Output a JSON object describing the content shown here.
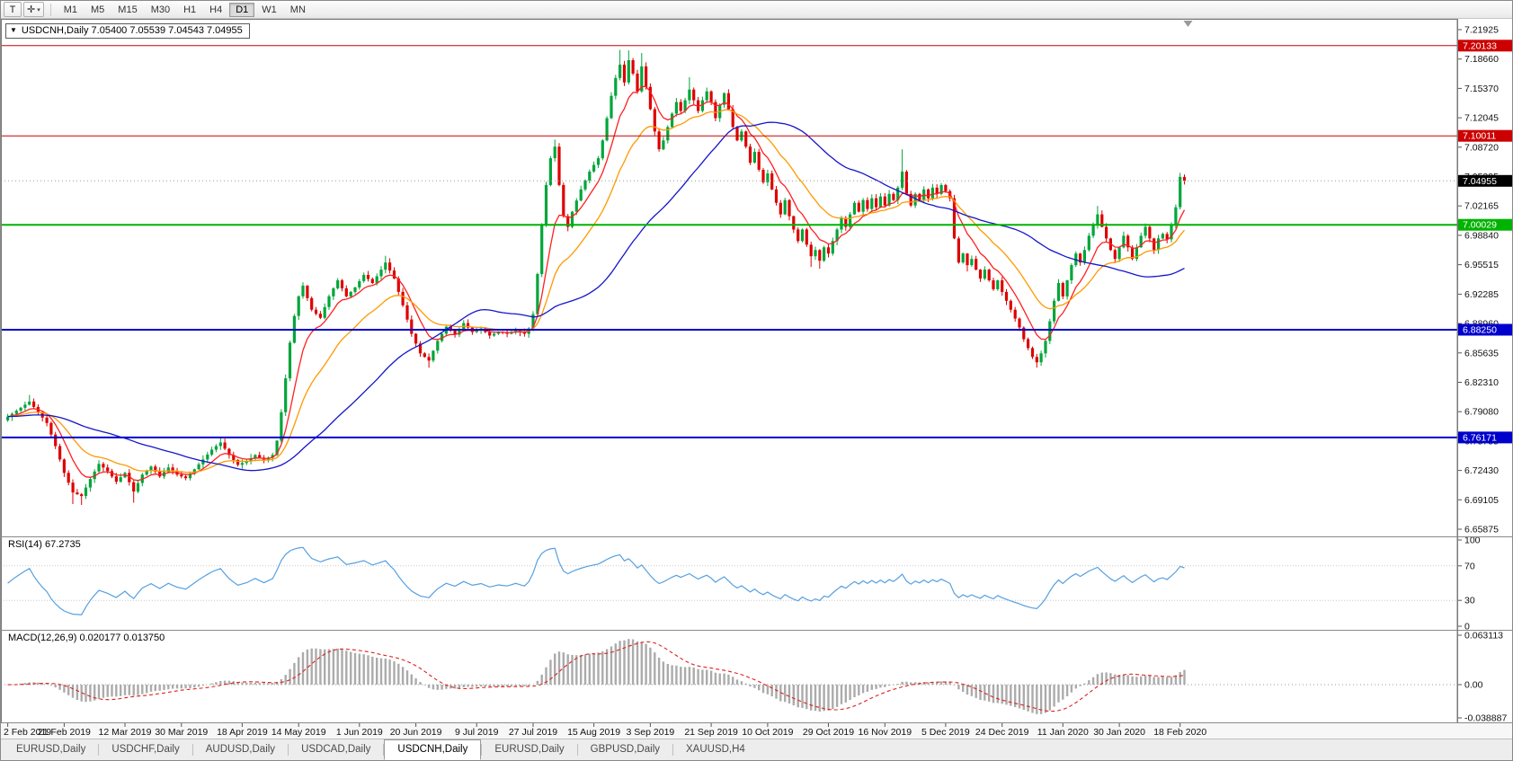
{
  "toolbar": {
    "text_tool_glyph": "T",
    "crosshair_glyph": "✛",
    "caret_glyph": "▾",
    "timeframes": [
      "M1",
      "M5",
      "M15",
      "M30",
      "H1",
      "H4",
      "D1",
      "W1",
      "MN"
    ],
    "active_timeframe": "D1"
  },
  "chart": {
    "title": "USDCNH,Daily 7.05400 7.05539 7.04543 7.04955",
    "ohlc_caret": "▼",
    "symbol": "USDCNH",
    "period": "Daily",
    "open": "7.05400",
    "high": "7.05539",
    "low": "7.04543",
    "close": "7.04955"
  },
  "indicators": {
    "rsi": {
      "label": "RSI(14) 67.2735",
      "period": 14,
      "value": 67.2735,
      "axis_labels": [
        "100",
        "70",
        "30",
        "0"
      ],
      "levels": [
        70,
        30
      ],
      "line_color": "#55a0e0"
    },
    "macd": {
      "label": "MACD(12,26,9) 0.020177 0.013750",
      "values": [
        0.020177,
        0.01375
      ],
      "axis_labels": [
        "0.063113",
        "0.00",
        "-0.038887"
      ],
      "histogram_color": "#ababab",
      "signal_color": "#e02020"
    }
  },
  "chart_data": {
    "type": "candlestick",
    "symbol": "USDCNH",
    "timeframe": "Daily",
    "n_candles": 272,
    "bull_color": "#00a53a",
    "bear_color": "#dd0000",
    "price_axis": {
      "min": 6.65875,
      "max": 7.21925,
      "labels": [
        "7.21925",
        "7.18660",
        "7.15370",
        "7.12045",
        "7.08720",
        "7.05395",
        "7.02165",
        "6.98840",
        "6.95515",
        "6.92285",
        "6.88960",
        "6.85635",
        "6.82310",
        "6.79080",
        "6.75755",
        "6.72430",
        "6.69105",
        "6.65875"
      ]
    },
    "hlines": [
      {
        "value": 7.20133,
        "label": "7.20133",
        "color": "#cc0000",
        "width": 1
      },
      {
        "value": 7.10011,
        "label": "7.10011",
        "color": "#cc0000",
        "width": 1
      },
      {
        "value": 7.00029,
        "label": "7.00029",
        "color": "#00b300",
        "width": 2
      },
      {
        "value": 6.8825,
        "label": "6.88250",
        "color": "#0000cc",
        "width": 2
      },
      {
        "value": 6.76171,
        "label": "6.76171",
        "color": "#0000cc",
        "width": 2
      }
    ],
    "current_price": {
      "value": 7.04955,
      "label": "7.04955",
      "badge_color": "#000000"
    },
    "moving_averages": [
      {
        "name": "fast-ma",
        "type": "ema",
        "period": 8,
        "color": "#ff2020"
      },
      {
        "name": "mid-ma",
        "type": "ema",
        "period": 20,
        "color": "#ff9900"
      },
      {
        "name": "slow-ma",
        "type": "sma",
        "period": 45,
        "color": "#1515cc"
      }
    ],
    "date_axis": {
      "labels": [
        "2 Feb 2019",
        "21 Feb 2019",
        "12 Mar 2019",
        "30 Mar 2019",
        "18 Apr 2019",
        "14 May 2019",
        "1 Jun 2019",
        "20 Jun 2019",
        "9 Jul 2019",
        "27 Jul 2019",
        "15 Aug 2019",
        "3 Sep 2019",
        "21 Sep 2019",
        "10 Oct 2019",
        "29 Oct 2019",
        "16 Nov 2019",
        "5 Dec 2019",
        "24 Dec 2019",
        "11 Jan 2020",
        "30 Jan 2020",
        "18 Feb 2020"
      ],
      "indices": [
        0,
        13,
        27,
        40,
        54,
        67,
        81,
        94,
        108,
        121,
        135,
        148,
        162,
        175,
        189,
        202,
        216,
        229,
        243,
        256,
        270
      ]
    },
    "close_anchors": [
      [
        0,
        6.785
      ],
      [
        3,
        6.795
      ],
      [
        5,
        6.802
      ],
      [
        7,
        6.79
      ],
      [
        9,
        6.778
      ],
      [
        11,
        6.752
      ],
      [
        13,
        6.722
      ],
      [
        15,
        6.7
      ],
      [
        17,
        6.696
      ],
      [
        19,
        6.715
      ],
      [
        21,
        6.732
      ],
      [
        23,
        6.724
      ],
      [
        25,
        6.712
      ],
      [
        27,
        6.722
      ],
      [
        29,
        6.701
      ],
      [
        31,
        6.72
      ],
      [
        33,
        6.729
      ],
      [
        35,
        6.718
      ],
      [
        37,
        6.728
      ],
      [
        39,
        6.72
      ],
      [
        41,
        6.716
      ],
      [
        43,
        6.726
      ],
      [
        45,
        6.737
      ],
      [
        47,
        6.748
      ],
      [
        49,
        6.756
      ],
      [
        51,
        6.742
      ],
      [
        53,
        6.731
      ],
      [
        55,
        6.735
      ],
      [
        57,
        6.742
      ],
      [
        59,
        6.736
      ],
      [
        61,
        6.742
      ],
      [
        62,
        6.758
      ],
      [
        63,
        6.79
      ],
      [
        64,
        6.828
      ],
      [
        65,
        6.868
      ],
      [
        66,
        6.898
      ],
      [
        67,
        6.92
      ],
      [
        68,
        6.932
      ],
      [
        69,
        6.918
      ],
      [
        70,
        6.905
      ],
      [
        72,
        6.896
      ],
      [
        74,
        6.92
      ],
      [
        76,
        6.938
      ],
      [
        78,
        6.92
      ],
      [
        80,
        6.93
      ],
      [
        82,
        6.944
      ],
      [
        84,
        6.935
      ],
      [
        86,
        6.95
      ],
      [
        87,
        6.958
      ],
      [
        89,
        6.94
      ],
      [
        91,
        6.91
      ],
      [
        93,
        6.878
      ],
      [
        95,
        6.856
      ],
      [
        97,
        6.848
      ],
      [
        99,
        6.87
      ],
      [
        101,
        6.886
      ],
      [
        103,
        6.877
      ],
      [
        105,
        6.89
      ],
      [
        107,
        6.88
      ],
      [
        109,
        6.884
      ],
      [
        111,
        6.876
      ],
      [
        113,
        6.88
      ],
      [
        115,
        6.878
      ],
      [
        117,
        6.882
      ],
      [
        119,
        6.878
      ],
      [
        120,
        6.884
      ],
      [
        121,
        6.9
      ],
      [
        122,
        6.945
      ],
      [
        123,
        7.0
      ],
      [
        124,
        7.045
      ],
      [
        125,
        7.075
      ],
      [
        126,
        7.088
      ],
      [
        127,
        7.045
      ],
      [
        128,
        7.01
      ],
      [
        129,
        6.998
      ],
      [
        130,
        7.015
      ],
      [
        132,
        7.04
      ],
      [
        134,
        7.06
      ],
      [
        136,
        7.075
      ],
      [
        137,
        7.095
      ],
      [
        138,
        7.12
      ],
      [
        139,
        7.145
      ],
      [
        140,
        7.165
      ],
      [
        141,
        7.18
      ],
      [
        142,
        7.16
      ],
      [
        143,
        7.185
      ],
      [
        144,
        7.17
      ],
      [
        145,
        7.15
      ],
      [
        146,
        7.178
      ],
      [
        147,
        7.155
      ],
      [
        148,
        7.13
      ],
      [
        149,
        7.105
      ],
      [
        150,
        7.085
      ],
      [
        151,
        7.095
      ],
      [
        152,
        7.11
      ],
      [
        153,
        7.125
      ],
      [
        154,
        7.138
      ],
      [
        155,
        7.128
      ],
      [
        156,
        7.14
      ],
      [
        157,
        7.152
      ],
      [
        158,
        7.14
      ],
      [
        159,
        7.128
      ],
      [
        160,
        7.14
      ],
      [
        161,
        7.15
      ],
      [
        162,
        7.138
      ],
      [
        163,
        7.12
      ],
      [
        164,
        7.135
      ],
      [
        165,
        7.148
      ],
      [
        166,
        7.13
      ],
      [
        167,
        7.11
      ],
      [
        168,
        7.095
      ],
      [
        169,
        7.105
      ],
      [
        170,
        7.088
      ],
      [
        171,
        7.07
      ],
      [
        172,
        7.082
      ],
      [
        173,
        7.062
      ],
      [
        174,
        7.048
      ],
      [
        175,
        7.058
      ],
      [
        176,
        7.04
      ],
      [
        177,
        7.025
      ],
      [
        178,
        7.012
      ],
      [
        179,
        7.028
      ],
      [
        180,
        7.01
      ],
      [
        181,
        6.995
      ],
      [
        182,
        6.982
      ],
      [
        183,
        6.995
      ],
      [
        184,
        6.978
      ],
      [
        185,
        6.965
      ],
      [
        186,
        6.972
      ],
      [
        187,
        6.96
      ],
      [
        188,
        6.975
      ],
      [
        189,
        6.968
      ],
      [
        190,
        6.982
      ],
      [
        191,
        6.995
      ],
      [
        192,
        7.008
      ],
      [
        193,
        6.998
      ],
      [
        194,
        7.012
      ],
      [
        195,
        7.025
      ],
      [
        196,
        7.015
      ],
      [
        197,
        7.028
      ],
      [
        198,
        7.018
      ],
      [
        199,
        7.03
      ],
      [
        200,
        7.02
      ],
      [
        201,
        7.032
      ],
      [
        202,
        7.022
      ],
      [
        203,
        7.035
      ],
      [
        204,
        7.028
      ],
      [
        205,
        7.042
      ],
      [
        206,
        7.06
      ],
      [
        207,
        7.035
      ],
      [
        208,
        7.022
      ],
      [
        209,
        7.035
      ],
      [
        210,
        7.028
      ],
      [
        211,
        7.04
      ],
      [
        212,
        7.03
      ],
      [
        213,
        7.042
      ],
      [
        214,
        7.035
      ],
      [
        215,
        7.045
      ],
      [
        216,
        7.038
      ],
      [
        217,
        7.03
      ],
      [
        218,
        6.985
      ],
      [
        219,
        6.958
      ],
      [
        220,
        6.968
      ],
      [
        221,
        6.955
      ],
      [
        222,
        6.962
      ],
      [
        223,
        6.95
      ],
      [
        224,
        6.94
      ],
      [
        225,
        6.95
      ],
      [
        226,
        6.938
      ],
      [
        227,
        6.928
      ],
      [
        228,
        6.938
      ],
      [
        229,
        6.925
      ],
      [
        230,
        6.915
      ],
      [
        231,
        6.905
      ],
      [
        232,
        6.895
      ],
      [
        233,
        6.885
      ],
      [
        234,
        6.872
      ],
      [
        235,
        6.862
      ],
      [
        236,
        6.852
      ],
      [
        237,
        6.846
      ],
      [
        238,
        6.856
      ],
      [
        239,
        6.87
      ],
      [
        240,
        6.892
      ],
      [
        241,
        6.915
      ],
      [
        242,
        6.935
      ],
      [
        243,
        6.92
      ],
      [
        244,
        6.938
      ],
      [
        245,
        6.955
      ],
      [
        246,
        6.968
      ],
      [
        247,
        6.958
      ],
      [
        248,
        6.972
      ],
      [
        249,
        6.988
      ],
      [
        250,
        7.0
      ],
      [
        251,
        7.012
      ],
      [
        252,
        6.998
      ],
      [
        253,
        6.985
      ],
      [
        254,
        6.972
      ],
      [
        255,
        6.962
      ],
      [
        256,
        6.975
      ],
      [
        257,
        6.988
      ],
      [
        258,
        6.975
      ],
      [
        259,
        6.962
      ],
      [
        260,
        6.975
      ],
      [
        261,
        6.988
      ],
      [
        262,
        6.998
      ],
      [
        263,
        6.985
      ],
      [
        264,
        6.972
      ],
      [
        265,
        6.985
      ],
      [
        266,
        6.99
      ],
      [
        267,
        6.984
      ],
      [
        268,
        7.0
      ],
      [
        269,
        7.02
      ],
      [
        270,
        7.054
      ],
      [
        271,
        7.04955
      ]
    ],
    "wick_high_overrides": [
      [
        5,
        6.8095
      ],
      [
        49,
        6.7625
      ],
      [
        87,
        6.9655
      ],
      [
        126,
        7.096
      ],
      [
        141,
        7.1965
      ],
      [
        143,
        7.196
      ],
      [
        146,
        7.193
      ],
      [
        157,
        7.166
      ],
      [
        206,
        7.085
      ],
      [
        251,
        7.0215
      ],
      [
        270,
        7.058
      ],
      [
        271,
        7.05539
      ]
    ],
    "wick_low_overrides": [
      [
        15,
        6.687
      ],
      [
        17,
        6.686
      ],
      [
        29,
        6.6885
      ],
      [
        97,
        6.84
      ],
      [
        129,
        6.993
      ],
      [
        185,
        6.953
      ],
      [
        187,
        6.951
      ],
      [
        221,
        6.948
      ],
      [
        237,
        6.84
      ],
      [
        271,
        7.04543
      ]
    ]
  },
  "tabbar": {
    "tabs": [
      {
        "label": "EURUSD,Daily",
        "active": false
      },
      {
        "label": "USDCHF,Daily",
        "active": false
      },
      {
        "label": "AUDUSD,Daily",
        "active": false
      },
      {
        "label": "USDCAD,Daily",
        "active": false
      },
      {
        "label": "USDCNH,Daily",
        "active": true
      },
      {
        "label": "EURUSD,Daily",
        "active": false
      },
      {
        "label": "GBPUSD,Daily",
        "active": false
      },
      {
        "label": "XAUUSD,H4",
        "active": false
      }
    ]
  }
}
